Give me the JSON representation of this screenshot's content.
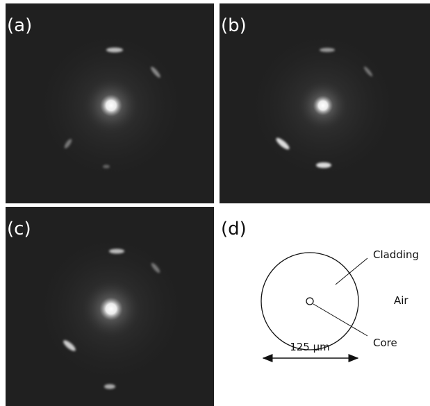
{
  "panels": {
    "a": {
      "label": "(a)"
    },
    "b": {
      "label": "(b)"
    },
    "c": {
      "label": "(c)"
    },
    "d": {
      "label": "(d)"
    }
  },
  "diagram": {
    "cladding": "Cladding",
    "air": "Air",
    "core": "Core",
    "scale": "125 μm"
  }
}
